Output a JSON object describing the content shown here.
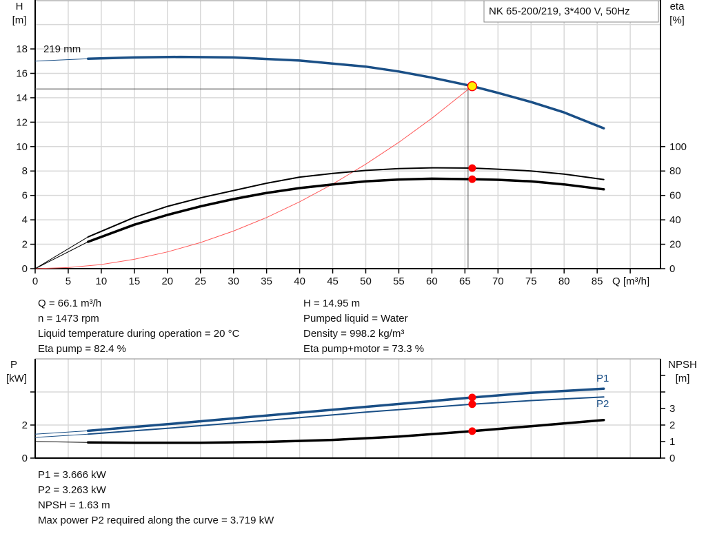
{
  "colors": {
    "pump_curve": "#1a4f86",
    "efficiency": "#000000",
    "system_curve": "#ff5a5a",
    "duty_point": "#ffee00",
    "marker": "#ff0000",
    "grid": "#d8d8d8"
  },
  "chart_data": [
    {
      "type": "line",
      "title": "NK 65-200/219, 3*400 V, 50Hz",
      "xlabel": "Q [m³/h]",
      "ylabel_left": [
        "H",
        "[m]"
      ],
      "ylabel_right": [
        "eta",
        "[%]"
      ],
      "xlim": [
        0,
        94.6
      ],
      "ylim": [
        0,
        22
      ],
      "ylim_right": [
        0,
        124
      ],
      "x_ticks": [
        "0",
        "5",
        "10",
        "15",
        "20",
        "25",
        "30",
        "35",
        "40",
        "45",
        "50",
        "55",
        "60",
        "65",
        "70",
        "75",
        "80",
        "85"
      ],
      "y_ticks": [
        "0",
        "2",
        "4",
        "6",
        "8",
        "10",
        "12",
        "14",
        "16",
        "18"
      ],
      "y_right_ticks": [
        "0",
        "20",
        "40",
        "60",
        "80",
        "100"
      ],
      "grid": true,
      "curve_label": "219 mm",
      "series": [
        {
          "key": "H",
          "axis": "left",
          "extrapolated": [
            [
              0,
              17.0
            ],
            [
              8,
              17.2
            ]
          ],
          "points": [
            [
              8,
              17.2
            ],
            [
              15,
              17.3
            ],
            [
              22,
              17.35
            ],
            [
              30,
              17.3
            ],
            [
              40,
              17.05
            ],
            [
              50,
              16.55
            ],
            [
              55,
              16.15
            ],
            [
              60,
              15.65
            ],
            [
              66.1,
              14.95
            ],
            [
              70,
              14.4
            ],
            [
              75,
              13.65
            ],
            [
              80,
              12.8
            ],
            [
              86,
              11.5
            ]
          ]
        },
        {
          "key": "eta_pump",
          "axis": "right",
          "extrapolated": [
            [
              0,
              0
            ],
            [
              8,
              26
            ]
          ],
          "points": [
            [
              8,
              26
            ],
            [
              15,
              42
            ],
            [
              20,
              51
            ],
            [
              25,
              58
            ],
            [
              30,
              64
            ],
            [
              35,
              70
            ],
            [
              40,
              75
            ],
            [
              45,
              78
            ],
            [
              50,
              80.5
            ],
            [
              55,
              82
            ],
            [
              60,
              82.6
            ],
            [
              66.1,
              82.4
            ],
            [
              70,
              81.5
            ],
            [
              75,
              80
            ],
            [
              80,
              77.5
            ],
            [
              86,
              73
            ]
          ]
        },
        {
          "key": "eta_pump_motor",
          "axis": "right",
          "extrapolated": [
            [
              0,
              0
            ],
            [
              8,
              22
            ]
          ],
          "points": [
            [
              8,
              22
            ],
            [
              15,
              36
            ],
            [
              20,
              44
            ],
            [
              25,
              51
            ],
            [
              30,
              57
            ],
            [
              35,
              62
            ],
            [
              40,
              66
            ],
            [
              45,
              69
            ],
            [
              50,
              71.5
            ],
            [
              55,
              73
            ],
            [
              60,
              73.7
            ],
            [
              66.1,
              73.3
            ],
            [
              70,
              72.8
            ],
            [
              75,
              71.5
            ],
            [
              80,
              69
            ],
            [
              86,
              65
            ]
          ]
        },
        {
          "key": "system",
          "axis": "left",
          "points": [
            [
              0,
              0
            ],
            [
              5,
              0.09
            ],
            [
              10,
              0.34
            ],
            [
              15,
              0.77
            ],
            [
              20,
              1.37
            ],
            [
              25,
              2.14
            ],
            [
              30,
              3.08
            ],
            [
              35,
              4.19
            ],
            [
              40,
              5.48
            ],
            [
              45,
              6.93
            ],
            [
              50,
              8.56
            ],
            [
              55,
              10.35
            ],
            [
              60,
              12.32
            ],
            [
              66.1,
              14.95
            ]
          ]
        }
      ],
      "duty_point": {
        "Q": 66.1,
        "H": 14.95,
        "eta_pump": 82.4,
        "eta_pump_motor": 73.3
      }
    },
    {
      "type": "line",
      "ylabel_left": [
        "P",
        "[kW]"
      ],
      "ylabel_right": [
        "NPSH",
        "[m]"
      ],
      "xlim": [
        0,
        94.6
      ],
      "ylim": [
        0,
        6
      ],
      "ylim_right": [
        0,
        6
      ],
      "y_ticks": [
        "0",
        "2"
      ],
      "y_right_ticks": [
        "0",
        "1",
        "2",
        "3"
      ],
      "grid": true,
      "series": [
        {
          "key": "P1",
          "name": "P1",
          "extrapolated": [
            [
              0,
              1.45
            ],
            [
              8,
              1.65
            ]
          ],
          "points": [
            [
              8,
              1.65
            ],
            [
              20,
              2.05
            ],
            [
              30,
              2.4
            ],
            [
              40,
              2.75
            ],
            [
              50,
              3.1
            ],
            [
              60,
              3.45
            ],
            [
              66.1,
              3.666
            ],
            [
              75,
              3.95
            ],
            [
              86,
              4.2
            ]
          ]
        },
        {
          "key": "P2",
          "name": "P2",
          "extrapolated": [
            [
              0,
              1.25
            ],
            [
              8,
              1.45
            ]
          ],
          "points": [
            [
              8,
              1.45
            ],
            [
              20,
              1.8
            ],
            [
              30,
              2.12
            ],
            [
              40,
              2.45
            ],
            [
              50,
              2.78
            ],
            [
              60,
              3.08
            ],
            [
              66.1,
              3.263
            ],
            [
              75,
              3.48
            ],
            [
              86,
              3.7
            ]
          ]
        },
        {
          "key": "NPSH",
          "extrapolated": [
            [
              0,
              1.0
            ],
            [
              8,
              0.95
            ]
          ],
          "points": [
            [
              8,
              0.95
            ],
            [
              15,
              0.93
            ],
            [
              25,
              0.93
            ],
            [
              35,
              0.98
            ],
            [
              45,
              1.1
            ],
            [
              55,
              1.3
            ],
            [
              66.1,
              1.63
            ],
            [
              75,
              1.93
            ],
            [
              86,
              2.3
            ]
          ]
        }
      ],
      "duty_point": {
        "Q": 66.1,
        "P1": 3.666,
        "P2": 3.263,
        "NPSH": 1.63
      }
    }
  ],
  "info_top_left": [
    "Q = 66.1 m³/h",
    "n = 1473 rpm",
    "Liquid temperature during operation = 20 °C",
    "Eta pump = 82.4 %"
  ],
  "info_top_right": [
    "H = 14.95 m",
    "Pumped liquid = Water",
    "Density = 998.2 kg/m³",
    "Eta pump+motor = 73.3 %"
  ],
  "info_bottom": [
    "P1 = 3.666 kW",
    "P2 = 3.263 kW",
    "NPSH = 1.63 m",
    "Max power P2 required along the curve = 3.719 kW"
  ]
}
